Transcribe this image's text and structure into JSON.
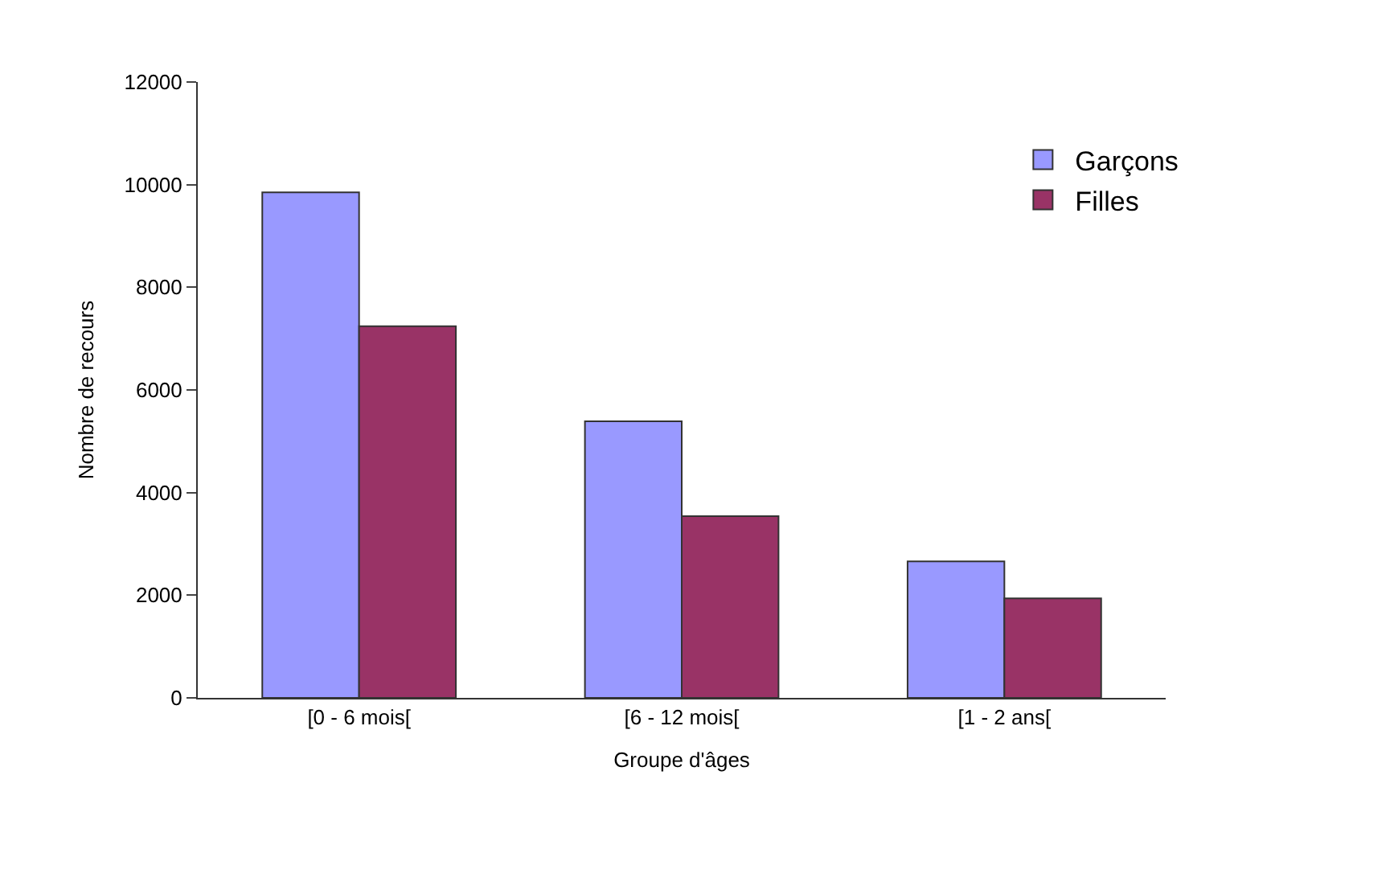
{
  "chart_data": {
    "type": "bar",
    "xlabel": "Groupe d'âges",
    "ylabel": "Nombre de recours",
    "categories": [
      "[0 - 6 mois[",
      "[6 - 12 mois[",
      "[1 - 2 ans["
    ],
    "series": [
      {
        "name": "Garçons",
        "color": "#9999ff",
        "values": [
          9850,
          5390,
          2660
        ]
      },
      {
        "name": "Filles",
        "color": "#993366",
        "values": [
          7240,
          3540,
          1940
        ]
      }
    ],
    "ylim": [
      0,
      12000
    ],
    "yticks": [
      0,
      2000,
      4000,
      6000,
      8000,
      10000,
      12000
    ],
    "legend": "top right"
  }
}
